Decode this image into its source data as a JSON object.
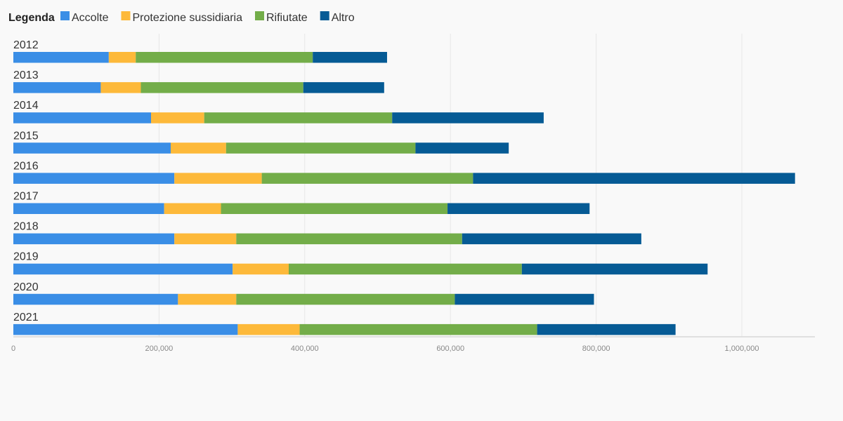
{
  "chart_data": {
    "type": "bar",
    "orientation": "horizontal",
    "stacked": true,
    "legend_title": "Legenda",
    "legend_position": "top-left",
    "categories": [
      "2012",
      "2013",
      "2014",
      "2015",
      "2016",
      "2017",
      "2018",
      "2019",
      "2020",
      "2021"
    ],
    "series": [
      {
        "name": "Accolte",
        "color": "#3a8ee6",
        "values": [
          131000,
          120000,
          189000,
          216000,
          221000,
          207000,
          221000,
          301000,
          226000,
          308000
        ]
      },
      {
        "name": "Protezione sussidiaria",
        "color": "#fdb93a",
        "values": [
          37000,
          55000,
          73000,
          76000,
          120000,
          78000,
          85000,
          77000,
          80000,
          85000
        ]
      },
      {
        "name": "Rifiutate",
        "color": "#73ad49",
        "values": [
          243000,
          223000,
          258000,
          260000,
          290000,
          311000,
          310000,
          320000,
          300000,
          326000
        ]
      },
      {
        "name": "Altro",
        "color": "#065b95",
        "values": [
          102000,
          111000,
          208000,
          128000,
          442000,
          195000,
          246000,
          255000,
          191000,
          190000
        ]
      }
    ],
    "x_ticks": [
      0,
      200000,
      400000,
      600000,
      800000,
      1000000
    ],
    "x_tick_labels": [
      "0",
      "200,000",
      "400,000",
      "600,000",
      "800,000",
      "1,000,000"
    ],
    "xlim": [
      0,
      1100000
    ],
    "grid": true
  }
}
